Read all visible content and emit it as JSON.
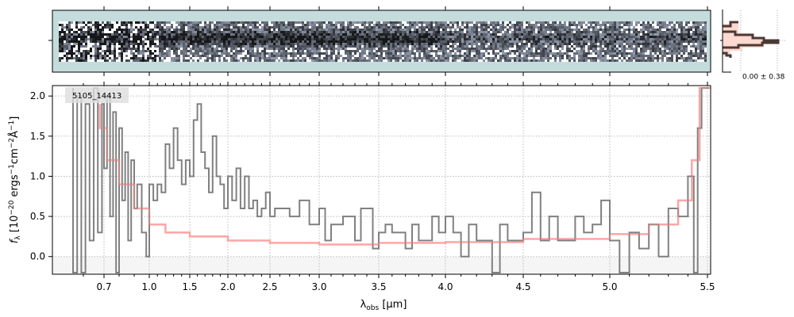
{
  "chart_data": {
    "type": "line",
    "object_label": "5105_14413",
    "xlabel": "λobs [μm]",
    "ylabel": "fλ [10^-20 ergs^-1 cm^-2 Å^-1]",
    "ylim": [
      -0.22,
      2.13
    ],
    "x_ticks": [
      0.7,
      1.0,
      1.5,
      2.0,
      2.5,
      3.0,
      3.5,
      4.0,
      4.5,
      5.0,
      5.5
    ],
    "x_tick_labels": [
      "0.7",
      "1.0",
      "1.5",
      "2.0",
      "2.5",
      "3.0",
      "3.5",
      "4.0",
      "4.5",
      "5.0",
      "5.5"
    ],
    "y_ticks": [
      0.0,
      0.5,
      1.0,
      1.5,
      2.0
    ],
    "y_tick_labels": [
      "0.0",
      "0.5",
      "1.0",
      "1.5",
      "2.0"
    ],
    "grid": true,
    "histogram_label": "0.00 ± 0.38",
    "series": [
      {
        "name": "spectrum",
        "color": "#808080",
        "x": [
          0.55,
          0.57,
          0.59,
          0.61,
          0.63,
          0.65,
          0.67,
          0.69,
          0.7,
          0.72,
          0.74,
          0.76,
          0.78,
          0.8,
          0.82,
          0.84,
          0.86,
          0.88,
          0.9,
          0.92,
          0.95,
          0.98,
          1.0,
          1.05,
          1.1,
          1.15,
          1.2,
          1.25,
          1.3,
          1.35,
          1.4,
          1.45,
          1.5,
          1.55,
          1.6,
          1.65,
          1.7,
          1.75,
          1.8,
          1.85,
          1.9,
          1.95,
          2.0,
          2.05,
          2.1,
          2.15,
          2.2,
          2.25,
          2.3,
          2.35,
          2.4,
          2.45,
          2.5,
          2.55,
          2.6,
          2.7,
          2.8,
          2.9,
          3.0,
          3.05,
          3.1,
          3.2,
          3.3,
          3.35,
          3.45,
          3.5,
          3.55,
          3.6,
          3.7,
          3.75,
          3.8,
          3.9,
          3.95,
          4.0,
          4.05,
          4.1,
          4.15,
          4.2,
          4.3,
          4.35,
          4.4,
          4.5,
          4.55,
          4.6,
          4.65,
          4.7,
          4.8,
          4.85,
          4.9,
          4.95,
          5.0,
          5.05,
          5.1,
          5.15,
          5.2,
          5.25,
          5.3,
          5.35,
          5.4,
          5.43,
          5.45,
          5.47,
          5.49
        ],
        "y": [
          2.1,
          -0.2,
          2.0,
          -0.2,
          1.9,
          0.2,
          2.1,
          0.3,
          1.9,
          1.1,
          2.0,
          0.5,
          1.8,
          -0.2,
          1.6,
          0.7,
          1.3,
          0.2,
          1.2,
          0.6,
          0.9,
          0.3,
          0.0,
          0.9,
          0.7,
          0.9,
          0.8,
          1.4,
          1.1,
          1.6,
          1.2,
          0.9,
          1.2,
          1.0,
          1.7,
          1.9,
          1.3,
          1.1,
          0.8,
          1.5,
          1.0,
          0.9,
          0.6,
          1.0,
          0.7,
          1.1,
          0.6,
          1.0,
          0.6,
          0.7,
          0.5,
          0.6,
          0.8,
          0.5,
          0.6,
          0.6,
          0.5,
          0.7,
          0.4,
          0.6,
          0.2,
          0.4,
          0.5,
          0.2,
          0.6,
          0.1,
          0.3,
          0.4,
          0.3,
          0.1,
          0.4,
          0.2,
          0.5,
          0.3,
          0.5,
          0.3,
          0.0,
          0.4,
          0.2,
          -0.2,
          0.4,
          0.2,
          0.3,
          0.8,
          0.2,
          0.5,
          0.2,
          0.5,
          0.3,
          0.4,
          0.7,
          0.2,
          -0.2,
          0.3,
          0.1,
          0.4,
          0.0,
          0.6,
          0.5,
          1.0,
          -0.2,
          1.6,
          2.1
        ]
      },
      {
        "name": "model",
        "color": "#ff9c9c",
        "x": [
          0.68,
          0.72,
          0.8,
          0.9,
          1.0,
          1.2,
          1.5,
          2.0,
          2.5,
          3.0,
          3.5,
          4.0,
          4.5,
          5.0,
          5.2,
          5.35,
          5.42,
          5.46,
          5.5
        ],
        "y": [
          1.9,
          1.6,
          1.2,
          0.9,
          0.6,
          0.4,
          0.3,
          0.25,
          0.2,
          0.17,
          0.15,
          0.17,
          0.18,
          0.22,
          0.28,
          0.4,
          0.7,
          1.2,
          2.1
        ]
      }
    ]
  }
}
